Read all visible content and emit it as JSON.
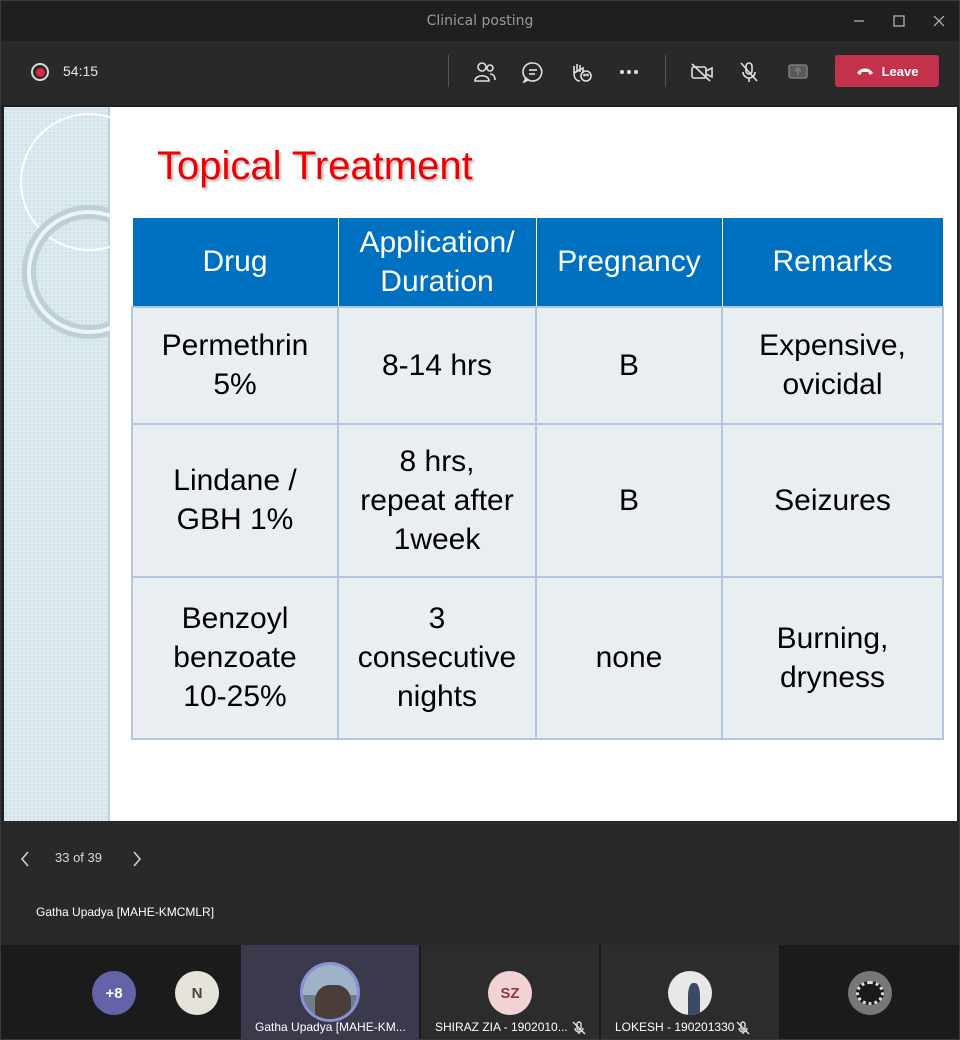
{
  "window": {
    "title": "Clinical posting"
  },
  "toolbar": {
    "timer": "54:15",
    "leave_label": "Leave"
  },
  "slide": {
    "title": "Topical Treatment",
    "table": {
      "headers": [
        "Drug",
        "Application/\nDuration",
        "Pregnancy",
        "Remarks"
      ],
      "rows": [
        [
          "Permethrin\n5%",
          "8-14 hrs",
          "B",
          "Expensive,\novicidal"
        ],
        [
          "Lindane /\nGBH 1%",
          "8 hrs,\nrepeat after\n1week",
          "B",
          "Seizures"
        ],
        [
          "Benzoyl\nbenzoate\n10-25%",
          "3\nconsecutive\nnights",
          "none",
          "Burning,\ndryness"
        ]
      ]
    }
  },
  "navigation": {
    "page_count": "33 of 39"
  },
  "presenter_name": "Gatha Upadya [MAHE-KMCMLR]",
  "participants": {
    "overflow_count": "+8",
    "n_initial": "N",
    "tiles": [
      {
        "name": "Gatha Upadya [MAHE-KM...",
        "initials": ""
      },
      {
        "name": "SHIRAZ ZIA - 1902010...",
        "initials": "SZ"
      },
      {
        "name": "LOKESH - 190201330",
        "initials": ""
      }
    ]
  },
  "colors": {
    "slide_title": "#ee0000",
    "table_header": "#0070c0",
    "leave_button": "#c4314b",
    "overflow_avatar": "#6264a7"
  }
}
